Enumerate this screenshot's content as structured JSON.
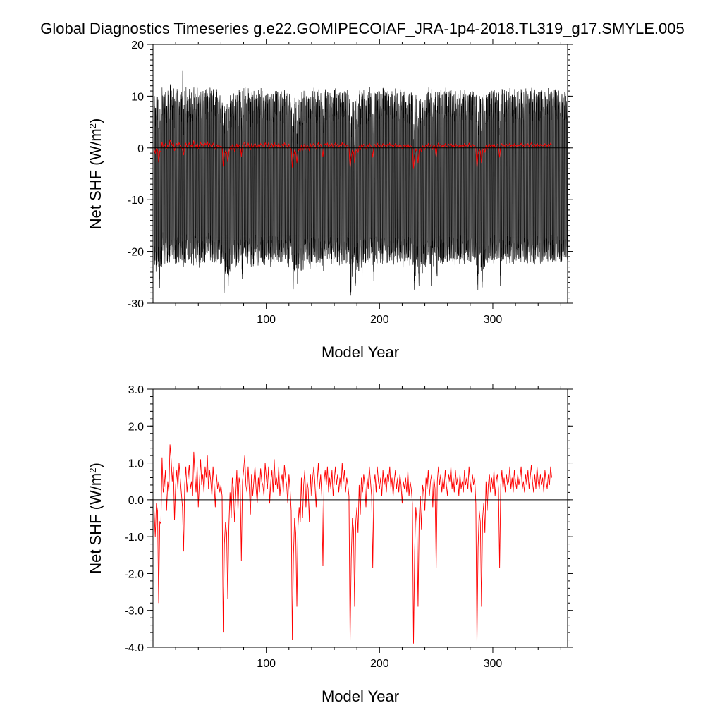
{
  "figure": {
    "title": "Global Diagnostics Timeseries g.e22.GOMIPECOIAF_JRA-1p4-2018.TL319_g17.SMYLE.005"
  },
  "colors": {
    "monthly_series": "#000000",
    "annual_series": "#ff0000",
    "zero_line": "#000000"
  },
  "chart_data": [
    {
      "type": "line",
      "panel": "top",
      "xlabel": "Model Year",
      "ylabel": "Net SHF (W/m²)",
      "ylabel_text": "Net SHF (W/m",
      "ylabel_sup": "2",
      "ylabel_close": ")",
      "xlim": [
        0,
        366
      ],
      "ylim": [
        -30,
        20
      ],
      "xticks": [
        100,
        200,
        300
      ],
      "xtick_labels": [
        "100",
        "200",
        "300"
      ],
      "yticks": [
        -30,
        -20,
        -10,
        0,
        10,
        20
      ],
      "ytick_labels": [
        "-30",
        "-20",
        "-10",
        "0",
        "10",
        "20"
      ],
      "zero_line": 0,
      "series": [
        {
          "id": "monthly",
          "color": "#000000",
          "description": "monthly values, seasonal cycle oscillating roughly between -27 and 15",
          "typical_max": 7.5,
          "typical_min": -20.5,
          "extreme_points": [
            {
              "x": 26,
              "y": 15.0
            },
            {
              "x": 62,
              "y": -26.7
            },
            {
              "x": 123,
              "y": -26.8
            },
            {
              "x": 184,
              "y": -26.8
            },
            {
              "x": 245,
              "y": -26.7
            },
            {
              "x": 306,
              "y": -26.7
            }
          ]
        },
        {
          "id": "annual",
          "color": "#ff0000",
          "source": "panel_bottom_annual"
        }
      ]
    },
    {
      "type": "line",
      "panel": "bottom",
      "xlabel": "Model Year",
      "ylabel": "Net SHF (W/m²)",
      "ylabel_text": "Net SHF (W/m",
      "ylabel_sup": "2",
      "ylabel_close": ")",
      "xlim": [
        0,
        366
      ],
      "ylim": [
        -4.0,
        3.0
      ],
      "xticks": [
        100,
        200,
        300
      ],
      "xtick_labels": [
        "100",
        "200",
        "300"
      ],
      "yticks": [
        -4.0,
        -3.0,
        -2.0,
        -1.0,
        0.0,
        1.0,
        2.0,
        3.0
      ],
      "ytick_labels": [
        "-4.0",
        "-3.0",
        "-2.0",
        "-1.0",
        "0.0",
        "1.0",
        "2.0",
        "3.0"
      ],
      "zero_line": 0,
      "series": [
        {
          "id": "annual",
          "color": "#ff0000",
          "x_start": 1,
          "y": [
            -0.3,
            -1.0,
            -0.1,
            -0.3,
            -2.8,
            -0.6,
            -0.65,
            1.15,
            0.2,
            0.4,
            0.8,
            -0.3,
            0.5,
            0.2,
            1.5,
            1.1,
            0.5,
            0.9,
            -0.55,
            0.4,
            0.8,
            0.3,
            1.0,
            0.6,
            0.2,
            -0.2,
            -1.4,
            0.4,
            0.9,
            0.2,
            0.6,
            0.95,
            0.3,
            0.5,
            0.1,
            1.3,
            0.7,
            0.2,
            0.9,
            -0.2,
            0.5,
            1.1,
            0.4,
            0.7,
            0.2,
            0.9,
            0.6,
            1.2,
            0.3,
            0.8,
            0.5,
            0.1,
            0.9,
            0.4,
            -0.2,
            0.7,
            0.3,
            0.5,
            0.2,
            0.4,
            0.1,
            -3.6,
            -1.2,
            -0.6,
            -0.9,
            -2.7,
            -0.7,
            0.2,
            -0.5,
            0.6,
            0.3,
            -0.6,
            0.1,
            0.8,
            -0.3,
            0.6,
            0.4,
            -1.65,
            0.5,
            0.8,
            1.2,
            0.4,
            0.2,
            0.9,
            0.3,
            -0.4,
            0.7,
            0.1,
            0.5,
            0.9,
            0.3,
            -0.1,
            0.6,
            0.2,
            0.85,
            0.5,
            0.4,
            0.1,
            1.0,
            0.6,
            0.3,
            0.9,
            -0.1,
            0.5,
            0.8,
            0.2,
            1.1,
            0.4,
            0.6,
            0.3,
            0.9,
            0.1,
            0.5,
            0.7,
            0.2,
            0.95,
            0.6,
            0.4,
            -0.1,
            0.7,
            0.3,
            -0.3,
            -3.8,
            -1.5,
            -0.5,
            -0.9,
            -2.9,
            -0.7,
            -0.2,
            -0.6,
            0.6,
            -0.5,
            0.4,
            0.8,
            -0.2,
            0.5,
            0.3,
            -0.6,
            0.7,
            0.1,
            0.6,
            0.9,
            0.4,
            -0.2,
            0.5,
            1.0,
            0.3,
            0.7,
            0.1,
            -1.8,
            0.5,
            0.8,
            0.4,
            0.9,
            0.2,
            0.6,
            0.3,
            0.8,
            0.1,
            0.5,
            0.9,
            0.4,
            0.7,
            0.2,
            0.6,
            0.3,
            1.0,
            0.5,
            0.8,
            0.2,
            0.6,
            0.4,
            0.1,
            -3.85,
            -1.6,
            -0.5,
            -0.8,
            -2.9,
            -0.6,
            -0.2,
            -0.9,
            0.4,
            -0.4,
            0.6,
            0.2,
            0.7,
            0.4,
            -0.2,
            0.6,
            0.3,
            0.9,
            0.5,
            0.1,
            -1.85,
            0.4,
            0.7,
            0.2,
            0.9,
            0.5,
            0.3,
            0.6,
            0.1,
            0.8,
            0.4,
            0.6,
            0.2,
            0.7,
            0.5,
            0.9,
            0.3,
            0.6,
            0.1,
            0.5,
            0.8,
            0.3,
            0.6,
            0.2,
            0.7,
            0.4,
            -0.1,
            0.5,
            0.3,
            0.6,
            0.2,
            0.8,
            0.1,
            0.5,
            0.3,
            -0.1,
            -3.9,
            -1.4,
            -0.2,
            -0.6,
            -2.9,
            -0.5,
            0.1,
            -0.8,
            0.4,
            0.2,
            -0.3,
            0.6,
            0.3,
            0.8,
            0.1,
            0.5,
            0.7,
            -0.2,
            0.6,
            0.3,
            -1.85,
            0.5,
            0.9,
            0.4,
            0.7,
            0.2,
            0.6,
            0.3,
            0.8,
            0.4,
            0.1,
            0.7,
            0.5,
            0.9,
            0.3,
            0.6,
            0.2,
            0.8,
            0.4,
            0.6,
            0.1,
            0.7,
            0.3,
            0.5,
            0.2,
            0.8,
            0.4,
            0.6,
            0.3,
            0.9,
            0.5,
            0.2,
            0.7,
            0.4,
            0.6,
            -0.1,
            -3.9,
            -1.3,
            -0.3,
            -0.6,
            -2.9,
            -0.5,
            -0.1,
            -0.9,
            0.5,
            -0.3,
            0.4,
            0.7,
            0.2,
            0.6,
            0.3,
            0.8,
            0.1,
            0.5,
            0.7,
            0.3,
            -1.85,
            0.4,
            0.8,
            0.3,
            0.6,
            0.2,
            0.7,
            0.4,
            0.5,
            0.9,
            0.3,
            0.6,
            0.2,
            0.8,
            0.5,
            0.3,
            0.7,
            0.4,
            0.6,
            0.9,
            0.3,
            0.5,
            0.2,
            0.7,
            0.4,
            0.8,
            0.3,
            0.6,
            0.95,
            0.5,
            0.2,
            0.7,
            0.3,
            0.9,
            0.5,
            0.3,
            0.7,
            0.4,
            0.6,
            0.2,
            0.8,
            0.5,
            0.3,
            0.7,
            0.4,
            0.9,
            0.6
          ]
        }
      ]
    }
  ]
}
